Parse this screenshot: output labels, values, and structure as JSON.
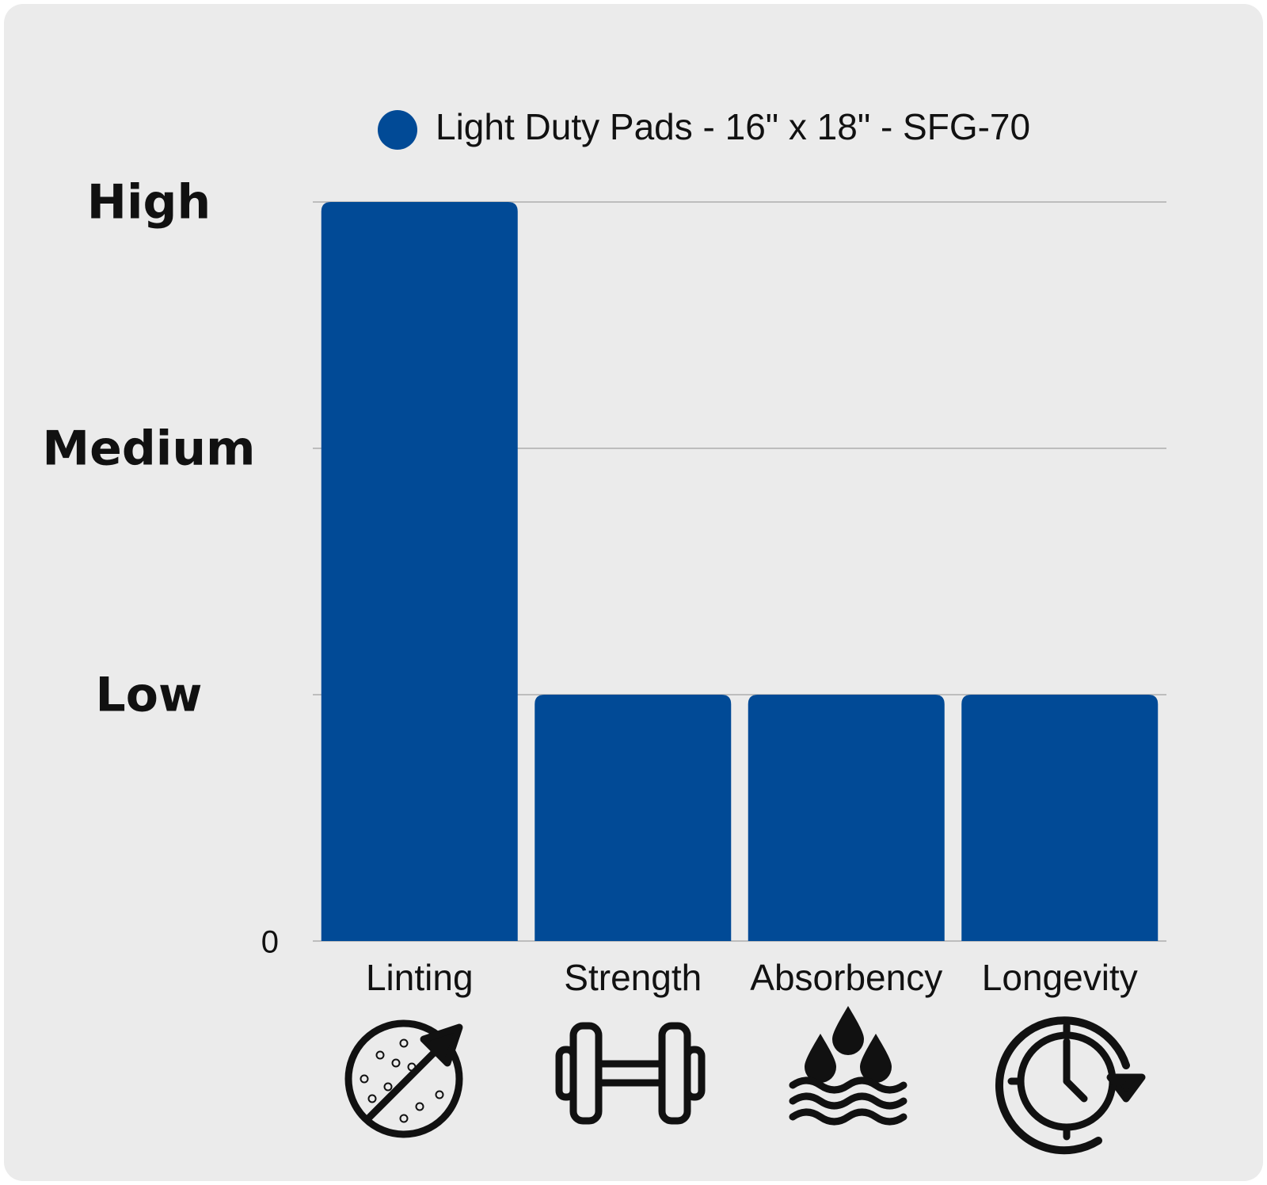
{
  "chart_data": {
    "type": "bar",
    "categories": [
      "Linting",
      "Strength",
      "Absorbency",
      "Longevity"
    ],
    "series": [
      {
        "name": "Light Duty Pads - 16\" x 18\" - SFG-70",
        "color": "#014a96",
        "values": [
          3,
          1,
          1,
          1
        ]
      }
    ],
    "ylim": [
      0,
      3
    ],
    "yticks": [
      0,
      {
        "value": 1,
        "label": "Low"
      },
      {
        "value": 2,
        "label": "Medium"
      },
      {
        "value": 3,
        "label": "High"
      }
    ],
    "grid": true,
    "legend": "top"
  }
}
